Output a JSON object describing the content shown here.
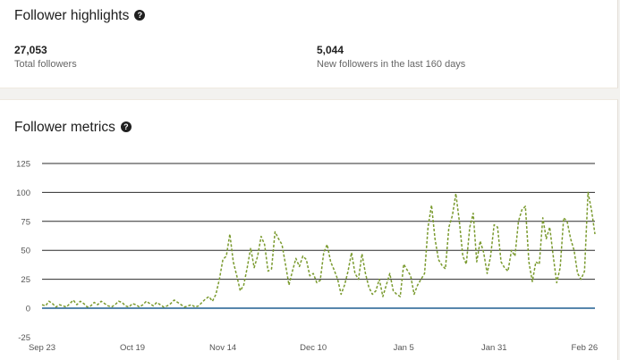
{
  "highlights": {
    "title": "Follower highlights",
    "help_icon": "question-circle-icon",
    "stats": [
      {
        "value": "27,053",
        "label": "Total followers"
      },
      {
        "value": "5,044",
        "label": "New followers in the last 160 days"
      }
    ]
  },
  "metrics": {
    "title": "Follower metrics",
    "help_icon": "question-circle-icon"
  },
  "chart_data": {
    "type": "line",
    "title": "",
    "xlabel": "",
    "ylabel": "",
    "ylim": [
      -25,
      125
    ],
    "yticks": [
      125,
      100,
      75,
      50,
      25,
      0,
      -25
    ],
    "grid": true,
    "xticks": [
      "Sep 23",
      "Oct 19",
      "Nov 14",
      "Dec 10",
      "Jan 5",
      "Jan 31",
      "Feb 26"
    ],
    "start_date": "Sep 23",
    "series": [
      {
        "style": "dashed",
        "color": "#7a9a2e",
        "values": [
          3,
          2,
          6,
          4,
          1,
          3,
          2,
          1,
          4,
          7,
          3,
          6,
          4,
          1,
          2,
          5,
          3,
          6,
          4,
          2,
          1,
          3,
          6,
          5,
          2,
          1,
          4,
          3,
          1,
          3,
          6,
          4,
          2,
          5,
          3,
          1,
          2,
          4,
          7,
          5,
          3,
          1,
          2,
          3,
          1,
          2,
          5,
          8,
          10,
          6,
          12,
          25,
          42,
          45,
          64,
          40,
          28,
          15,
          20,
          35,
          52,
          35,
          45,
          62,
          55,
          32,
          34,
          66,
          60,
          55,
          38,
          20,
          32,
          43,
          36,
          45,
          42,
          28,
          30,
          22,
          24,
          48,
          55,
          40,
          33,
          25,
          12,
          20,
          32,
          48,
          30,
          25,
          47,
          30,
          18,
          12,
          15,
          25,
          10,
          20,
          30,
          15,
          12,
          10,
          38,
          33,
          28,
          12,
          20,
          25,
          30,
          70,
          89,
          60,
          42,
          37,
          34,
          70,
          80,
          99,
          75,
          45,
          38,
          70,
          82,
          40,
          58,
          48,
          30,
          45,
          72,
          70,
          40,
          35,
          32,
          50,
          45,
          75,
          85,
          88,
          40,
          23,
          40,
          38,
          78,
          60,
          70,
          45,
          22,
          35,
          78,
          75,
          60,
          50,
          30,
          25,
          32,
          100,
          85,
          64
        ]
      },
      {
        "style": "solid",
        "color": "#1f5f91",
        "values": [
          0,
          0
        ]
      }
    ]
  }
}
